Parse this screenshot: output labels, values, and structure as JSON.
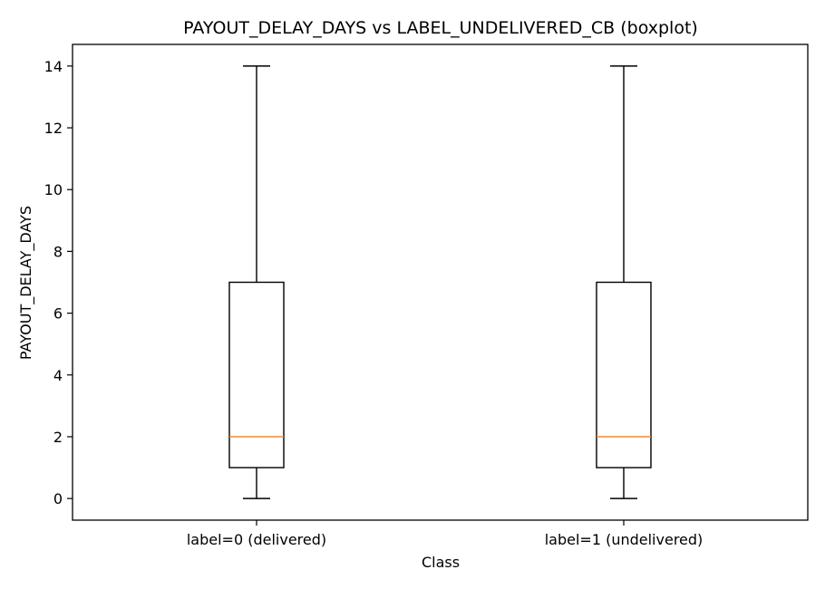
{
  "chart_data": {
    "type": "boxplot",
    "title": "PAYOUT_DELAY_DAYS vs LABEL_UNDELIVERED_CB (boxplot)",
    "xlabel": "Class",
    "ylabel": "PAYOUT_DELAY_DAYS",
    "categories": [
      "label=0 (delivered)",
      "label=1 (undelivered)"
    ],
    "boxes": [
      {
        "whisker_low": 0,
        "q1": 1,
        "median": 2,
        "q3": 7,
        "whisker_high": 14
      },
      {
        "whisker_low": 0,
        "q1": 1,
        "median": 2,
        "q3": 7,
        "whisker_high": 14
      }
    ],
    "ylim": [
      -0.7,
      14.7
    ],
    "yticks": [
      0,
      2,
      4,
      6,
      8,
      10,
      12,
      14
    ],
    "grid": false,
    "colors": {
      "box": "#000000",
      "median": "#ff7f0e"
    }
  }
}
